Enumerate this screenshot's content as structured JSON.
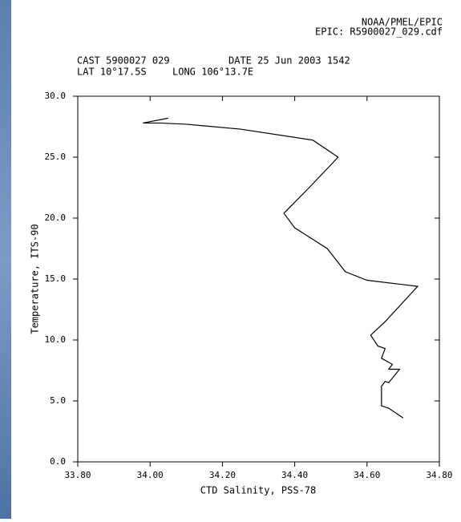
{
  "header": {
    "source": "NOAA/PMEL/EPIC",
    "file": "EPIC: R5900027_029.cdf",
    "cast": "CAST 5900027 029",
    "date": "DATE 25 Jun 2003 1542",
    "lat": "LAT 10°17.5S",
    "long": "LONG 106°13.7E"
  },
  "chart_data": {
    "type": "line",
    "xlabel": "CTD Salinity, PSS-78",
    "ylabel": "Temperature, ITS-90",
    "x": [
      34.05,
      33.98,
      34.03,
      34.1,
      34.25,
      34.45,
      34.52,
      34.44,
      34.37,
      34.4,
      34.49,
      34.54,
      34.6,
      34.74,
      34.65,
      34.61,
      34.63,
      34.65,
      34.64,
      34.67,
      34.66,
      34.69,
      34.66,
      34.65,
      34.64,
      34.64,
      34.66,
      34.7
    ],
    "series": [
      {
        "color": "#000000",
        "values": [
          28.2,
          27.8,
          27.8,
          27.7,
          27.3,
          26.4,
          25.0,
          22.5,
          20.4,
          19.2,
          17.5,
          15.6,
          14.9,
          14.4,
          11.5,
          10.4,
          9.5,
          9.3,
          8.5,
          8.0,
          7.6,
          7.6,
          6.5,
          6.6,
          6.2,
          4.6,
          4.4,
          3.6
        ]
      }
    ],
    "xlim": [
      33.8,
      34.8
    ],
    "ylim": [
      0,
      30
    ],
    "xticks": [
      {
        "value": 33.8,
        "label": "33.80"
      },
      {
        "value": 34.0,
        "label": "34.00"
      },
      {
        "value": 34.2,
        "label": "34.20"
      },
      {
        "value": 34.4,
        "label": "34.40"
      },
      {
        "value": 34.6,
        "label": "34.60"
      },
      {
        "value": 34.8,
        "label": "34.80"
      }
    ],
    "yticks": [
      {
        "value": 0,
        "label": "0.0"
      },
      {
        "value": 5,
        "label": "5.0"
      },
      {
        "value": 10,
        "label": "10.0"
      },
      {
        "value": 15,
        "label": "15.0"
      },
      {
        "value": 20,
        "label": "20.0"
      },
      {
        "value": 25,
        "label": "25.0"
      },
      {
        "value": 30,
        "label": "30.0"
      }
    ]
  }
}
